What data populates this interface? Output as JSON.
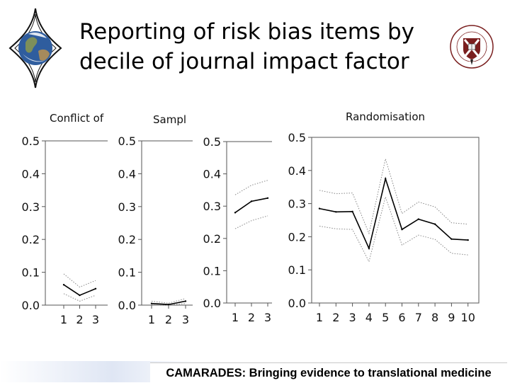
{
  "slide": {
    "title_line1": "Reporting of risk bias items by",
    "title_line2": "decile of journal impact factor",
    "footer": "CAMARADES: Bringing evidence to translational medicine",
    "colors": {
      "line": "#000000",
      "ci": "#888888",
      "axis": "#555555"
    }
  },
  "chart_data": [
    {
      "type": "line",
      "title": "Conflict of",
      "x": [
        1,
        2,
        3
      ],
      "xticks": [
        "1",
        "2",
        "3"
      ],
      "y": [
        0.062,
        0.03,
        0.05
      ],
      "upper": [
        0.095,
        0.055,
        0.075
      ],
      "lower": [
        0.035,
        0.012,
        0.03
      ],
      "ylim": [
        0.0,
        0.5
      ],
      "yticks": [
        "0.5",
        "0.4",
        "0.3",
        "0.2",
        "0.1",
        "0.0"
      ]
    },
    {
      "type": "line",
      "title": "Sampl",
      "x": [
        1,
        2,
        3
      ],
      "xticks": [
        "1",
        "2",
        "3"
      ],
      "y": [
        0.005,
        0.002,
        0.012
      ],
      "upper": [
        0.012,
        0.006,
        0.02
      ],
      "lower": [
        0.001,
        0.0,
        0.005
      ],
      "ylim": [
        0.0,
        0.5
      ],
      "yticks": [
        "0.5",
        "0.4",
        "0.3",
        "0.2",
        "0.1",
        "0.0"
      ]
    },
    {
      "type": "line",
      "title": "",
      "x": [
        1,
        2,
        3
      ],
      "xticks": [
        "1",
        "2",
        "3"
      ],
      "y": [
        0.28,
        0.315,
        0.325
      ],
      "upper": [
        0.335,
        0.365,
        0.38
      ],
      "lower": [
        0.23,
        0.255,
        0.27
      ],
      "ylim": [
        0.0,
        0.5
      ],
      "yticks": [
        "0.5",
        "0.4",
        "0.3",
        "0.2",
        "0.1",
        "0.0"
      ]
    },
    {
      "type": "line",
      "title": "Randomisation",
      "x": [
        1,
        2,
        3,
        4,
        5,
        6,
        7,
        8,
        9,
        10
      ],
      "xticks": [
        "1",
        "2",
        "3",
        "4",
        "5",
        "6",
        "7",
        "8",
        "9",
        "10"
      ],
      "y": [
        0.285,
        0.275,
        0.276,
        0.165,
        0.375,
        0.222,
        0.253,
        0.238,
        0.193,
        0.19
      ],
      "upper": [
        0.34,
        0.33,
        0.332,
        0.21,
        0.435,
        0.27,
        0.305,
        0.29,
        0.242,
        0.238
      ],
      "lower": [
        0.232,
        0.224,
        0.222,
        0.125,
        0.32,
        0.175,
        0.205,
        0.192,
        0.15,
        0.145
      ],
      "ylim": [
        0.0,
        0.5
      ],
      "yticks": [
        "0.5",
        "0.4",
        "0.3",
        "0.2",
        "0.1",
        "0.0"
      ]
    }
  ]
}
